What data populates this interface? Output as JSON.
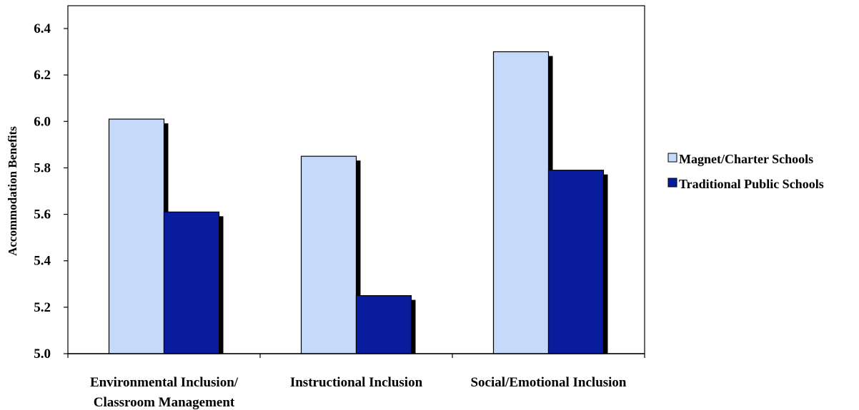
{
  "chart_data": {
    "type": "bar",
    "title": "",
    "xlabel": "",
    "ylabel": "Accommodation Benefits",
    "ylim": [
      5.0,
      6.5
    ],
    "yticks": [
      "5.0",
      "5.2",
      "5.4",
      "5.6",
      "5.8",
      "6.0",
      "6.2",
      "6.4"
    ],
    "grid": false,
    "legend_position": "right",
    "categories": [
      [
        "Environmental Inclusion/",
        "Classroom Management"
      ],
      [
        "Instructional Inclusion"
      ],
      [
        "Social/Emotional Inclusion"
      ]
    ],
    "series": [
      {
        "name": "Magnet/Charter Schools",
        "values": [
          6.01,
          5.85,
          6.3
        ],
        "color": "#c5d9fb"
      },
      {
        "name": "Traditional Public Schools",
        "values": [
          5.61,
          5.25,
          5.79
        ],
        "color": "#0a1c9e"
      }
    ],
    "shadow_color": "#000000"
  }
}
